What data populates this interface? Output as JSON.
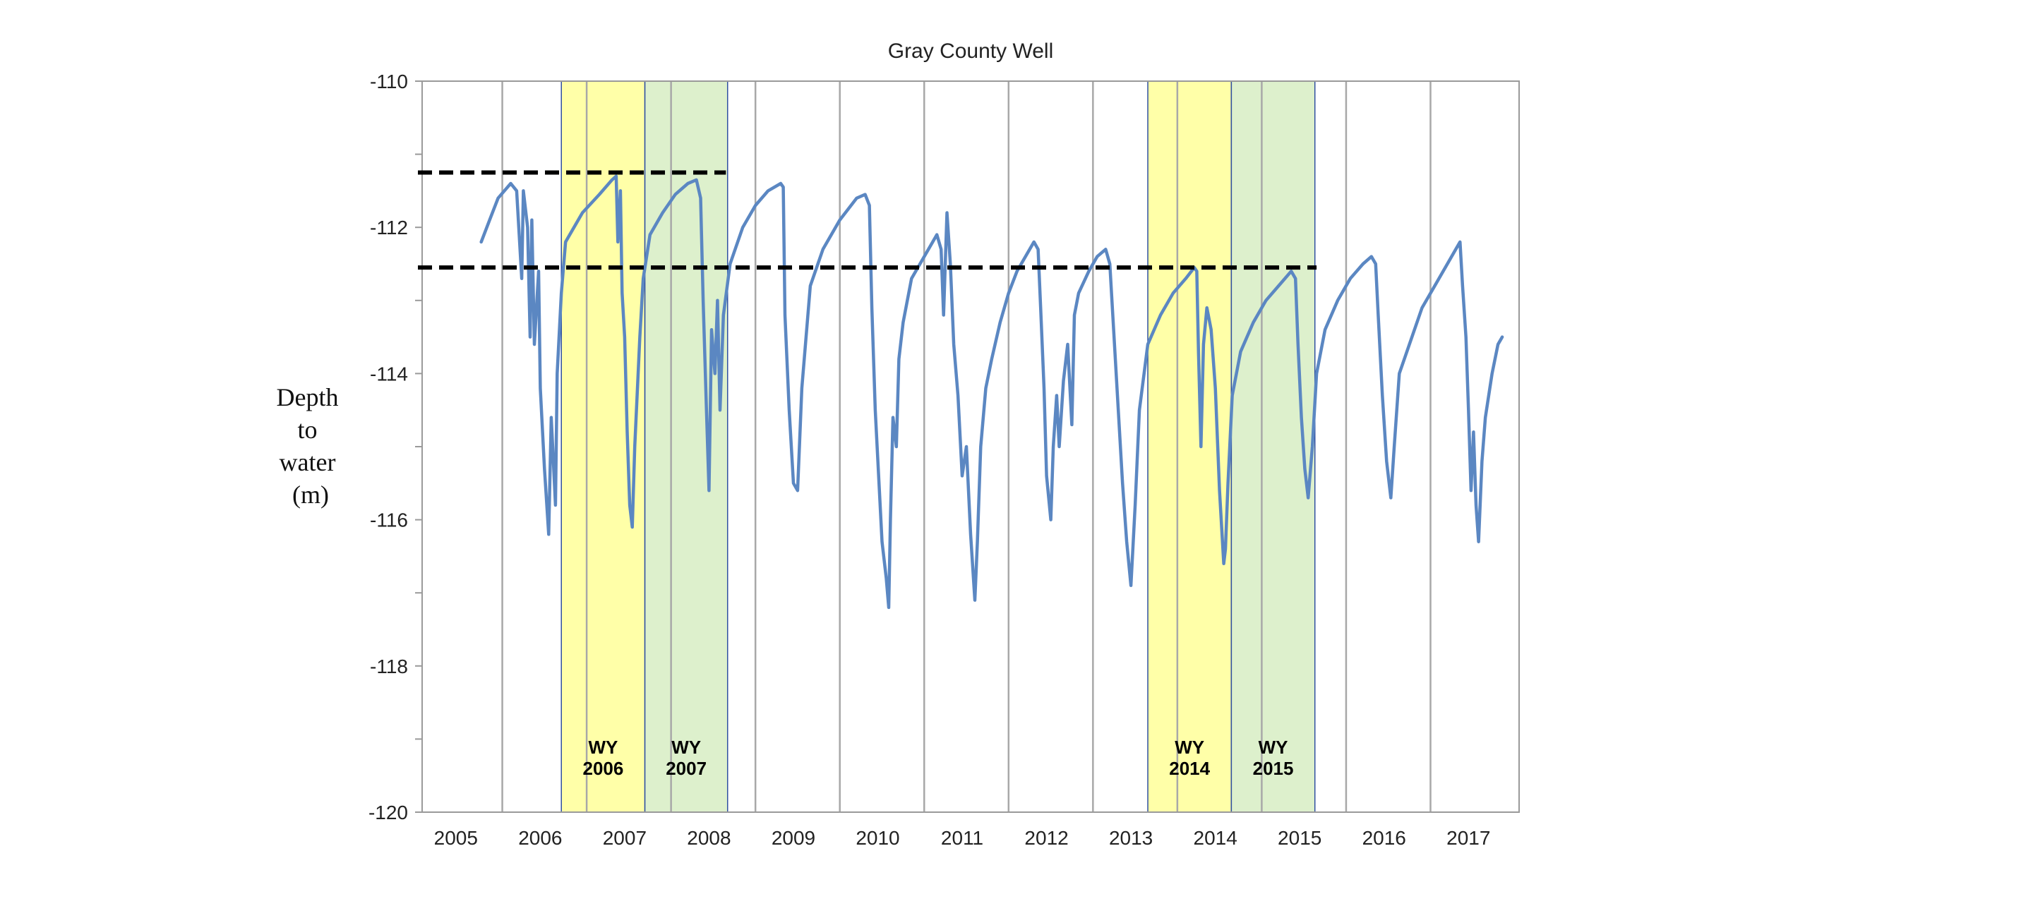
{
  "chart_data": {
    "type": "line",
    "title": "Gray County Well",
    "ylabel": [
      "Depth",
      "to",
      "water",
      "(m)"
    ],
    "xlabel": "",
    "xlim": [
      2004.6,
      2017.6
    ],
    "ylim": [
      -120,
      -110
    ],
    "yticks": [
      -110,
      -112,
      -114,
      -116,
      -118,
      -120
    ],
    "xticks": [
      2005,
      2006,
      2007,
      2008,
      2009,
      2010,
      2011,
      2012,
      2013,
      2014,
      2015,
      2016,
      2017
    ],
    "xtick_labels": [
      "2005",
      "2006",
      "2007",
      "2008",
      "2009",
      "2010",
      "2011",
      "2012",
      "2013",
      "2014",
      "2015",
      "2016",
      "2017"
    ],
    "ytick_labels": [
      "-110",
      "-112",
      "-114",
      "-116",
      "-118",
      "-120"
    ],
    "grid": "vertical",
    "line_color": "#5b87c2",
    "shaded_periods": [
      {
        "label_line1": "WY",
        "label_line2": "2006",
        "start": 2006.25,
        "end": 2007.24,
        "color": "#ffffa8"
      },
      {
        "label_line1": "WY",
        "label_line2": "2007",
        "start": 2007.24,
        "end": 2008.22,
        "color": "#ddf0cc"
      },
      {
        "label_line1": "WY",
        "label_line2": "2014",
        "start": 2013.2,
        "end": 2014.19,
        "color": "#ffffa8"
      },
      {
        "label_line1": "WY",
        "label_line2": "2015",
        "start": 2014.19,
        "end": 2015.18,
        "color": "#ddf0cc"
      }
    ],
    "reference_lines": [
      {
        "y": -111.25,
        "x_start": 2004.55,
        "x_end": 2008.2,
        "style": "dashed",
        "color": "#000000"
      },
      {
        "y": -112.55,
        "x_start": 2004.55,
        "x_end": 2015.2,
        "style": "dashed",
        "color": "#000000"
      }
    ],
    "series": [
      {
        "points": [
          [
            2005.3,
            -112.2
          ],
          [
            2005.4,
            -111.9
          ],
          [
            2005.5,
            -111.6
          ],
          [
            2005.65,
            -111.4
          ],
          [
            2005.72,
            -111.5
          ],
          [
            2005.78,
            -112.7
          ],
          [
            2005.8,
            -111.5
          ],
          [
            2005.85,
            -112.0
          ],
          [
            2005.88,
            -113.5
          ],
          [
            2005.9,
            -111.9
          ],
          [
            2005.93,
            -113.6
          ],
          [
            2005.98,
            -112.6
          ],
          [
            2006.0,
            -114.2
          ],
          [
            2006.05,
            -115.3
          ],
          [
            2006.1,
            -116.2
          ],
          [
            2006.13,
            -114.6
          ],
          [
            2006.18,
            -115.8
          ],
          [
            2006.2,
            -114.0
          ],
          [
            2006.25,
            -112.9
          ],
          [
            2006.3,
            -112.2
          ],
          [
            2006.5,
            -111.8
          ],
          [
            2006.7,
            -111.55
          ],
          [
            2006.85,
            -111.35
          ],
          [
            2006.9,
            -111.3
          ],
          [
            2006.92,
            -112.2
          ],
          [
            2006.95,
            -111.5
          ],
          [
            2006.97,
            -112.9
          ],
          [
            2007.0,
            -113.5
          ],
          [
            2007.03,
            -114.8
          ],
          [
            2007.06,
            -115.8
          ],
          [
            2007.09,
            -116.1
          ],
          [
            2007.12,
            -115.0
          ],
          [
            2007.18,
            -113.5
          ],
          [
            2007.22,
            -112.7
          ],
          [
            2007.3,
            -112.1
          ],
          [
            2007.45,
            -111.8
          ],
          [
            2007.6,
            -111.55
          ],
          [
            2007.75,
            -111.4
          ],
          [
            2007.85,
            -111.35
          ],
          [
            2007.9,
            -111.6
          ],
          [
            2007.93,
            -113.0
          ],
          [
            2007.97,
            -114.5
          ],
          [
            2008.0,
            -115.6
          ],
          [
            2008.03,
            -113.4
          ],
          [
            2008.07,
            -114.0
          ],
          [
            2008.1,
            -113.0
          ],
          [
            2008.13,
            -114.5
          ],
          [
            2008.17,
            -113.2
          ],
          [
            2008.25,
            -112.5
          ],
          [
            2008.4,
            -112.0
          ],
          [
            2008.55,
            -111.7
          ],
          [
            2008.7,
            -111.5
          ],
          [
            2008.85,
            -111.4
          ],
          [
            2008.88,
            -111.45
          ],
          [
            2008.9,
            -113.2
          ],
          [
            2008.95,
            -114.5
          ],
          [
            2009.0,
            -115.5
          ],
          [
            2009.05,
            -115.6
          ],
          [
            2009.1,
            -114.2
          ],
          [
            2009.15,
            -113.5
          ],
          [
            2009.2,
            -112.8
          ],
          [
            2009.35,
            -112.3
          ],
          [
            2009.55,
            -111.9
          ],
          [
            2009.75,
            -111.6
          ],
          [
            2009.85,
            -111.55
          ],
          [
            2009.9,
            -111.7
          ],
          [
            2009.93,
            -113.1
          ],
          [
            2009.97,
            -114.5
          ],
          [
            2010.05,
            -116.3
          ],
          [
            2010.1,
            -116.8
          ],
          [
            2010.13,
            -117.2
          ],
          [
            2010.15,
            -116.0
          ],
          [
            2010.18,
            -114.6
          ],
          [
            2010.22,
            -115.0
          ],
          [
            2010.25,
            -113.8
          ],
          [
            2010.3,
            -113.3
          ],
          [
            2010.4,
            -112.7
          ],
          [
            2010.55,
            -112.4
          ],
          [
            2010.7,
            -112.1
          ],
          [
            2010.75,
            -112.3
          ],
          [
            2010.78,
            -113.2
          ],
          [
            2010.82,
            -111.8
          ],
          [
            2010.86,
            -112.5
          ],
          [
            2010.9,
            -113.6
          ],
          [
            2010.95,
            -114.3
          ],
          [
            2011.0,
            -115.4
          ],
          [
            2011.05,
            -115.0
          ],
          [
            2011.1,
            -116.2
          ],
          [
            2011.15,
            -117.1
          ],
          [
            2011.18,
            -116.3
          ],
          [
            2011.22,
            -115.0
          ],
          [
            2011.28,
            -114.2
          ],
          [
            2011.35,
            -113.8
          ],
          [
            2011.45,
            -113.3
          ],
          [
            2011.55,
            -112.9
          ],
          [
            2011.65,
            -112.6
          ],
          [
            2011.75,
            -112.4
          ],
          [
            2011.85,
            -112.2
          ],
          [
            2011.9,
            -112.3
          ],
          [
            2011.93,
            -113.1
          ],
          [
            2011.97,
            -114.2
          ],
          [
            2012.0,
            -115.4
          ],
          [
            2012.05,
            -116.0
          ],
          [
            2012.08,
            -115.0
          ],
          [
            2012.12,
            -114.3
          ],
          [
            2012.15,
            -115.0
          ],
          [
            2012.2,
            -114.1
          ],
          [
            2012.25,
            -113.6
          ],
          [
            2012.3,
            -114.7
          ],
          [
            2012.33,
            -113.2
          ],
          [
            2012.38,
            -112.9
          ],
          [
            2012.5,
            -112.6
          ],
          [
            2012.6,
            -112.4
          ],
          [
            2012.7,
            -112.3
          ],
          [
            2012.75,
            -112.5
          ],
          [
            2012.8,
            -113.5
          ],
          [
            2012.85,
            -114.5
          ],
          [
            2012.9,
            -115.5
          ],
          [
            2012.95,
            -116.3
          ],
          [
            2013.0,
            -116.9
          ],
          [
            2013.05,
            -115.8
          ],
          [
            2013.1,
            -114.5
          ],
          [
            2013.2,
            -113.6
          ],
          [
            2013.35,
            -113.2
          ],
          [
            2013.5,
            -112.9
          ],
          [
            2013.65,
            -112.7
          ],
          [
            2013.75,
            -112.55
          ],
          [
            2013.78,
            -112.6
          ],
          [
            2013.8,
            -113.7
          ],
          [
            2013.83,
            -115.0
          ],
          [
            2013.86,
            -113.6
          ],
          [
            2013.9,
            -113.1
          ],
          [
            2013.95,
            -113.4
          ],
          [
            2014.0,
            -114.2
          ],
          [
            2014.05,
            -115.6
          ],
          [
            2014.1,
            -116.6
          ],
          [
            2014.12,
            -116.4
          ],
          [
            2014.15,
            -115.5
          ],
          [
            2014.2,
            -114.3
          ],
          [
            2014.3,
            -113.7
          ],
          [
            2014.45,
            -113.3
          ],
          [
            2014.6,
            -113.0
          ],
          [
            2014.75,
            -112.8
          ],
          [
            2014.9,
            -112.6
          ],
          [
            2014.95,
            -112.7
          ],
          [
            2014.98,
            -113.6
          ],
          [
            2015.02,
            -114.6
          ],
          [
            2015.06,
            -115.3
          ],
          [
            2015.1,
            -115.7
          ],
          [
            2015.15,
            -115.0
          ],
          [
            2015.2,
            -114.0
          ],
          [
            2015.3,
            -113.4
          ],
          [
            2015.45,
            -113.0
          ],
          [
            2015.6,
            -112.7
          ],
          [
            2015.75,
            -112.5
          ],
          [
            2015.85,
            -112.4
          ],
          [
            2015.9,
            -112.5
          ],
          [
            2015.93,
            -113.2
          ],
          [
            2015.98,
            -114.3
          ],
          [
            2016.03,
            -115.2
          ],
          [
            2016.08,
            -115.7
          ],
          [
            2016.12,
            -115.0
          ],
          [
            2016.18,
            -114.0
          ],
          [
            2016.3,
            -113.6
          ],
          [
            2016.45,
            -113.1
          ],
          [
            2016.6,
            -112.8
          ],
          [
            2016.75,
            -112.5
          ],
          [
            2016.85,
            -112.3
          ],
          [
            2016.9,
            -112.2
          ],
          [
            2016.93,
            -112.8
          ],
          [
            2016.97,
            -113.5
          ],
          [
            2017.0,
            -114.5
          ],
          [
            2017.03,
            -115.6
          ],
          [
            2017.06,
            -114.8
          ],
          [
            2017.09,
            -115.8
          ],
          [
            2017.12,
            -116.3
          ],
          [
            2017.16,
            -115.2
          ],
          [
            2017.2,
            -114.6
          ],
          [
            2017.28,
            -114.0
          ],
          [
            2017.35,
            -113.6
          ],
          [
            2017.4,
            -113.5
          ]
        ]
      }
    ]
  }
}
